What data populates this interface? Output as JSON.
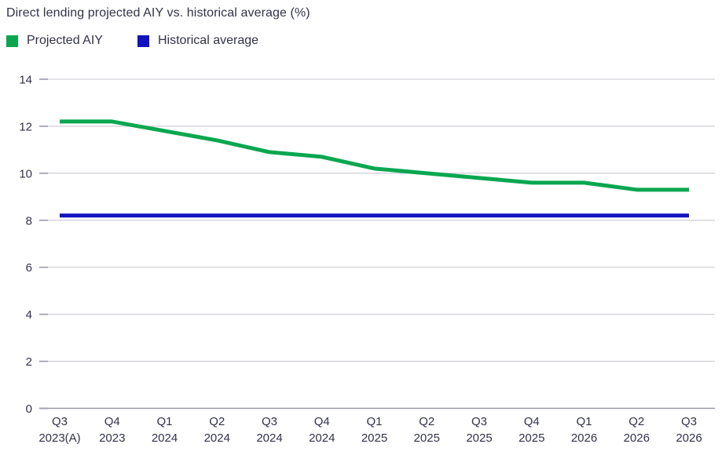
{
  "title": "Direct lending projected AIY vs. historical average (%)",
  "legend": [
    {
      "label": "Projected AIY",
      "color": "#0aa750"
    },
    {
      "label": "Historical average",
      "color": "#1212c0"
    }
  ],
  "colors": {
    "text": "#32324c",
    "grid": "#c9c9d2",
    "axis": "#9898a8",
    "tick": "#9a9aaa",
    "projected": "#0aa750",
    "historical": "#1212c0"
  },
  "chart_data": {
    "type": "line",
    "categories": [
      [
        "Q3",
        "2023(A)"
      ],
      [
        "Q4",
        "2023"
      ],
      [
        "Q1",
        "2024"
      ],
      [
        "Q2",
        "2024"
      ],
      [
        "Q3",
        "2024"
      ],
      [
        "Q4",
        "2024"
      ],
      [
        "Q1",
        "2025"
      ],
      [
        "Q2",
        "2025"
      ],
      [
        "Q3",
        "2025"
      ],
      [
        "Q4",
        "2025"
      ],
      [
        "Q1",
        "2026"
      ],
      [
        "Q2",
        "2026"
      ],
      [
        "Q3",
        "2026"
      ]
    ],
    "series": [
      {
        "name": "Projected AIY",
        "color": "#0aa750",
        "values": [
          12.2,
          12.2,
          11.8,
          11.4,
          10.9,
          10.7,
          10.2,
          10.0,
          9.8,
          9.6,
          9.6,
          9.3,
          9.3
        ]
      },
      {
        "name": "Historical average",
        "color": "#1212c0",
        "values": [
          8.2,
          8.2,
          8.2,
          8.2,
          8.2,
          8.2,
          8.2,
          8.2,
          8.2,
          8.2,
          8.2,
          8.2,
          8.2
        ]
      }
    ],
    "title": "Direct lending projected AIY vs. historical average (%)",
    "xlabel": "",
    "ylabel": "",
    "ylim": [
      0,
      14
    ],
    "yticks": [
      0,
      2,
      4,
      6,
      8,
      10,
      12,
      14
    ],
    "grid": true,
    "legend_position": "top-left"
  }
}
